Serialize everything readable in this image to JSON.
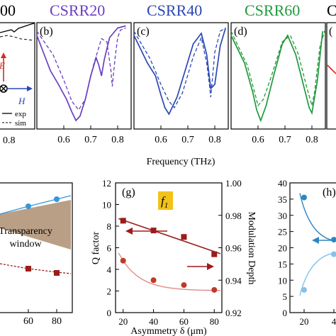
{
  "top_titles": {
    "partial_left": "00",
    "csrr20": "CSRR20",
    "csrr40": "CSRR40",
    "csrr60": "CSRR60",
    "partial_right": "C"
  },
  "title_colors": {
    "csrr20": "#6a3fc2",
    "csrr40": "#2a47b5",
    "csrr60": "#1f9a3c"
  },
  "panel_labels": {
    "b": "(b)",
    "c": "(c)",
    "d": "(d)",
    "e_partial": "(",
    "g": "(g)",
    "h": "(h)"
  },
  "legend_a": {
    "exp": "exp",
    "sim": "sim",
    "e_field": "E",
    "h_field": "H"
  },
  "freq_xticks": [
    "0.6",
    "0.7",
    "0.8"
  ],
  "left_partial_xtick": "0.8",
  "frequency_xlabel": "Frequency (THz)",
  "panel_f": {
    "xticks": [
      "60",
      "80"
    ],
    "window_text_1": "Transparency",
    "window_text_2": "window",
    "band_color": "#b99f85"
  },
  "f1_badge": {
    "text": "f",
    "sub": "1",
    "color": "#f2c21a"
  },
  "chart_data": [
    {
      "type": "line",
      "panel": "(b)",
      "title": "CSRR20",
      "series": [
        {
          "name": "exp",
          "x": [
            0.5,
            0.55,
            0.58,
            0.61,
            0.63,
            0.645,
            0.66,
            0.68,
            0.7,
            0.72,
            0.73,
            0.74,
            0.75,
            0.77,
            0.8,
            0.83
          ],
          "y": [
            0.88,
            0.55,
            0.42,
            0.28,
            0.16,
            0.08,
            0.12,
            0.28,
            0.5,
            0.67,
            0.6,
            0.5,
            0.65,
            0.86,
            0.95,
            0.97
          ]
        },
        {
          "name": "sim",
          "x": [
            0.5,
            0.56,
            0.6,
            0.63,
            0.655,
            0.68,
            0.71,
            0.74,
            0.76,
            0.775,
            0.78,
            0.79,
            0.8,
            0.81,
            0.83
          ],
          "y": [
            0.92,
            0.7,
            0.46,
            0.26,
            0.18,
            0.28,
            0.6,
            0.85,
            0.82,
            0.55,
            0.4,
            0.66,
            0.86,
            0.93,
            0.95
          ]
        }
      ]
    },
    {
      "type": "line",
      "panel": "(c)",
      "title": "CSRR40",
      "series": [
        {
          "name": "exp",
          "x": [
            0.5,
            0.55,
            0.58,
            0.6,
            0.615,
            0.63,
            0.66,
            0.69,
            0.72,
            0.75,
            0.77,
            0.785,
            0.8,
            0.82,
            0.84
          ],
          "y": [
            0.88,
            0.62,
            0.5,
            0.32,
            0.2,
            0.14,
            0.3,
            0.55,
            0.8,
            0.9,
            0.7,
            0.38,
            0.42,
            0.78,
            0.95
          ]
        },
        {
          "name": "sim",
          "x": [
            0.5,
            0.56,
            0.6,
            0.63,
            0.65,
            0.68,
            0.72,
            0.75,
            0.77,
            0.78,
            0.785,
            0.8,
            0.82,
            0.84
          ],
          "y": [
            0.92,
            0.66,
            0.42,
            0.26,
            0.2,
            0.34,
            0.68,
            0.86,
            0.62,
            0.42,
            0.3,
            0.72,
            0.92,
            0.95
          ]
        }
      ]
    },
    {
      "type": "line",
      "panel": "(d)",
      "title": "CSRR60",
      "series": [
        {
          "name": "exp",
          "x": [
            0.5,
            0.55,
            0.58,
            0.595,
            0.61,
            0.63,
            0.66,
            0.69,
            0.71,
            0.74,
            0.77,
            0.79,
            0.8,
            0.82,
            0.84
          ],
          "y": [
            0.88,
            0.62,
            0.35,
            0.18,
            0.08,
            0.22,
            0.52,
            0.8,
            0.88,
            0.7,
            0.4,
            0.2,
            0.15,
            0.45,
            0.92
          ]
        },
        {
          "name": "sim",
          "x": [
            0.5,
            0.56,
            0.59,
            0.6,
            0.62,
            0.65,
            0.69,
            0.72,
            0.75,
            0.78,
            0.8,
            0.81,
            0.83,
            0.85
          ],
          "y": [
            0.92,
            0.6,
            0.32,
            0.22,
            0.28,
            0.5,
            0.82,
            0.88,
            0.7,
            0.4,
            0.22,
            0.35,
            0.78,
            0.94
          ]
        }
      ]
    },
    {
      "type": "line",
      "panel": "(g)",
      "badge": "f1",
      "xlabel": "Asymmetry δ (μm)",
      "ylabel": "Q factor",
      "y2label": "Modulation Depth",
      "xlim": [
        15,
        85
      ],
      "ylim": [
        0,
        12
      ],
      "y2lim": [
        0.92,
        1.0
      ],
      "xticks": [
        20,
        40,
        60,
        80
      ],
      "yticks": [
        0,
        2,
        4,
        6,
        8,
        10,
        12
      ],
      "y2ticks": [
        "0.92",
        "0.94",
        "0.96",
        "0.98",
        "1.00"
      ],
      "series": [
        {
          "name": "Q factor",
          "axis": "left",
          "color": "#9b1c1c",
          "x": [
            20,
            40,
            60,
            80
          ],
          "y": [
            8.5,
            7.6,
            7.0,
            5.4
          ]
        },
        {
          "name": "Modulation Depth",
          "axis": "right",
          "color": "#c0392b",
          "x": [
            20,
            40,
            60,
            80
          ],
          "y": [
            0.952,
            0.94,
            0.937,
            0.934
          ]
        }
      ]
    },
    {
      "type": "line",
      "panel": "(h)",
      "ylim": [
        0,
        40
      ],
      "yticks": [
        0,
        5,
        10,
        15,
        20,
        25,
        30,
        35,
        40
      ],
      "xticks": [
        "20",
        "4"
      ],
      "series": [
        {
          "name": "upper",
          "color": "#2e86c1",
          "x": [
            20,
            40
          ],
          "y": [
            35.5,
            22.5
          ]
        },
        {
          "name": "lower",
          "color": "#85c1e9",
          "x": [
            20,
            40
          ],
          "y": [
            7.0,
            18.0
          ]
        }
      ]
    }
  ]
}
